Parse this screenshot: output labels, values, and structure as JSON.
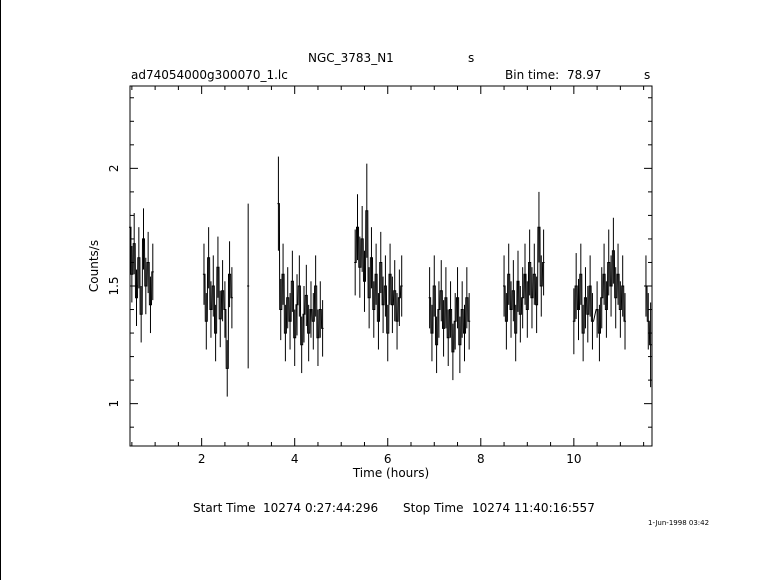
{
  "header": {
    "object_name": "NGC_3783_N1",
    "object_suffix": "s",
    "file_name": "ad74054000g300070_1.lc",
    "bin_time_label": "Bin time:",
    "bin_time_value": "78.97",
    "bin_time_unit": "s"
  },
  "footer": {
    "start_label": "Start Time",
    "start_value": "10274  0:27:44:296",
    "stop_label": "Stop Time",
    "stop_value": "10274 11:40:16:557",
    "date_stamp": "1-Jun-1998 03:42"
  },
  "chart_data": {
    "type": "line",
    "xlabel": "Time (hours)",
    "ylabel": "Counts/s",
    "xlim": [
      0.46,
      11.68
    ],
    "ylim": [
      0.82,
      2.35
    ],
    "xticks": [
      2,
      4,
      6,
      8,
      10
    ],
    "yticks": [
      1,
      1.5,
      2
    ],
    "x_tick_labels": [
      "2",
      "4",
      "6",
      "8",
      "10"
    ],
    "y_tick_labels": [
      "1",
      "1.5",
      "2"
    ],
    "grid": false,
    "legend": "none",
    "series": [
      {
        "segments": [
          {
            "x": [
              0.46,
              0.5,
              0.55,
              0.6,
              0.65,
              0.7,
              0.75,
              0.8,
              0.85,
              0.9,
              0.95
            ],
            "y": [
              1.75,
              1.55,
              1.68,
              1.45,
              1.62,
              1.38,
              1.7,
              1.5,
              1.6,
              1.42,
              1.56
            ],
            "err": [
              0.13,
              0.12,
              0.13,
              0.12,
              0.13,
              0.12,
              0.13,
              0.12,
              0.13,
              0.12,
              0.12
            ]
          },
          {
            "x": [
              2.05,
              2.1,
              2.15,
              2.2,
              2.25,
              2.3,
              2.35,
              2.4,
              2.45,
              2.5,
              2.55,
              2.6,
              2.65
            ],
            "y": [
              1.55,
              1.35,
              1.62,
              1.4,
              1.5,
              1.3,
              1.58,
              1.36,
              1.48,
              1.4,
              1.15,
              1.55,
              1.45
            ],
            "err": [
              0.13,
              0.12,
              0.13,
              0.12,
              0.13,
              0.12,
              0.13,
              0.12,
              0.13,
              0.12,
              0.12,
              0.14,
              0.13
            ]
          },
          {
            "x": [
              3.0
            ],
            "y": [
              1.5
            ],
            "err": [
              0.35
            ]
          },
          {
            "x": [
              3.65,
              3.7,
              3.75,
              3.8,
              3.85,
              3.9,
              3.95,
              4.0,
              4.05,
              4.1,
              4.15,
              4.2,
              4.25,
              4.3,
              4.35,
              4.4,
              4.45,
              4.5,
              4.55,
              4.6
            ],
            "y": [
              1.85,
              1.4,
              1.55,
              1.3,
              1.45,
              1.35,
              1.52,
              1.28,
              1.42,
              1.5,
              1.25,
              1.38,
              1.46,
              1.3,
              1.4,
              1.35,
              1.5,
              1.28,
              1.4,
              1.32
            ],
            "err": [
              0.2,
              0.13,
              0.13,
              0.12,
              0.13,
              0.12,
              0.13,
              0.12,
              0.13,
              0.13,
              0.12,
              0.12,
              0.13,
              0.12,
              0.12,
              0.12,
              0.13,
              0.12,
              0.12,
              0.12
            ]
          },
          {
            "x": [
              5.3,
              5.35,
              5.4,
              5.45,
              5.5,
              5.55,
              5.6,
              5.65,
              5.7,
              5.75,
              5.8,
              5.85,
              5.9,
              5.95,
              6.0,
              6.05,
              6.1,
              6.15,
              6.2,
              6.25,
              6.3
            ],
            "y": [
              1.6,
              1.75,
              1.58,
              1.7,
              1.52,
              1.82,
              1.45,
              1.62,
              1.4,
              1.55,
              1.35,
              1.6,
              1.42,
              1.5,
              1.3,
              1.55,
              1.42,
              1.48,
              1.35,
              1.45,
              1.5
            ],
            "err": [
              0.14,
              0.14,
              0.13,
              0.14,
              0.13,
              0.2,
              0.13,
              0.13,
              0.12,
              0.13,
              0.12,
              0.13,
              0.12,
              0.13,
              0.12,
              0.13,
              0.12,
              0.13,
              0.12,
              0.12,
              0.13
            ]
          },
          {
            "x": [
              6.9,
              6.95,
              7.0,
              7.05,
              7.1,
              7.15,
              7.2,
              7.25,
              7.3,
              7.35,
              7.4,
              7.45,
              7.5,
              7.55,
              7.6,
              7.65,
              7.7,
              7.75
            ],
            "y": [
              1.45,
              1.3,
              1.5,
              1.25,
              1.4,
              1.48,
              1.32,
              1.45,
              1.28,
              1.4,
              1.22,
              1.35,
              1.45,
              1.25,
              1.4,
              1.3,
              1.45,
              1.35
            ],
            "err": [
              0.13,
              0.12,
              0.13,
              0.12,
              0.12,
              0.13,
              0.12,
              0.13,
              0.12,
              0.12,
              0.12,
              0.12,
              0.13,
              0.12,
              0.12,
              0.12,
              0.13,
              0.12
            ]
          },
          {
            "x": [
              8.5,
              8.55,
              8.6,
              8.65,
              8.7,
              8.75,
              8.8,
              8.85,
              8.9,
              8.95,
              9.0,
              9.05,
              9.1,
              9.15,
              9.2,
              9.25,
              9.3,
              9.35
            ],
            "y": [
              1.5,
              1.35,
              1.55,
              1.4,
              1.48,
              1.3,
              1.52,
              1.38,
              1.45,
              1.55,
              1.4,
              1.6,
              1.45,
              1.55,
              1.42,
              1.75,
              1.5,
              1.6
            ],
            "err": [
              0.13,
              0.12,
              0.13,
              0.12,
              0.13,
              0.12,
              0.13,
              0.12,
              0.13,
              0.13,
              0.12,
              0.14,
              0.13,
              0.13,
              0.12,
              0.15,
              0.13,
              0.14
            ]
          },
          {
            "x": [
              10.0,
              10.05,
              10.1,
              10.15,
              10.2,
              10.25,
              10.3,
              10.35,
              10.4,
              10.5,
              10.55,
              10.6,
              10.65,
              10.7,
              10.75,
              10.8,
              10.85,
              10.9,
              10.95,
              11.0,
              11.05,
              11.1
            ],
            "y": [
              1.35,
              1.5,
              1.4,
              1.55,
              1.3,
              1.45,
              1.38,
              1.5,
              1.35,
              1.4,
              1.3,
              1.45,
              1.55,
              1.4,
              1.6,
              1.5,
              1.65,
              1.45,
              1.55,
              1.4,
              1.5,
              1.35
            ],
            "err": [
              0.14,
              0.14,
              0.13,
              0.13,
              0.12,
              0.13,
              0.12,
              0.13,
              0.12,
              0.12,
              0.12,
              0.13,
              0.13,
              0.12,
              0.14,
              0.13,
              0.14,
              0.13,
              0.13,
              0.12,
              0.13,
              0.12
            ]
          },
          {
            "x": [
              11.55,
              11.6,
              11.65
            ],
            "y": [
              1.5,
              1.35,
              1.25
            ],
            "err": [
              0.13,
              0.12,
              0.18
            ]
          }
        ]
      }
    ]
  }
}
